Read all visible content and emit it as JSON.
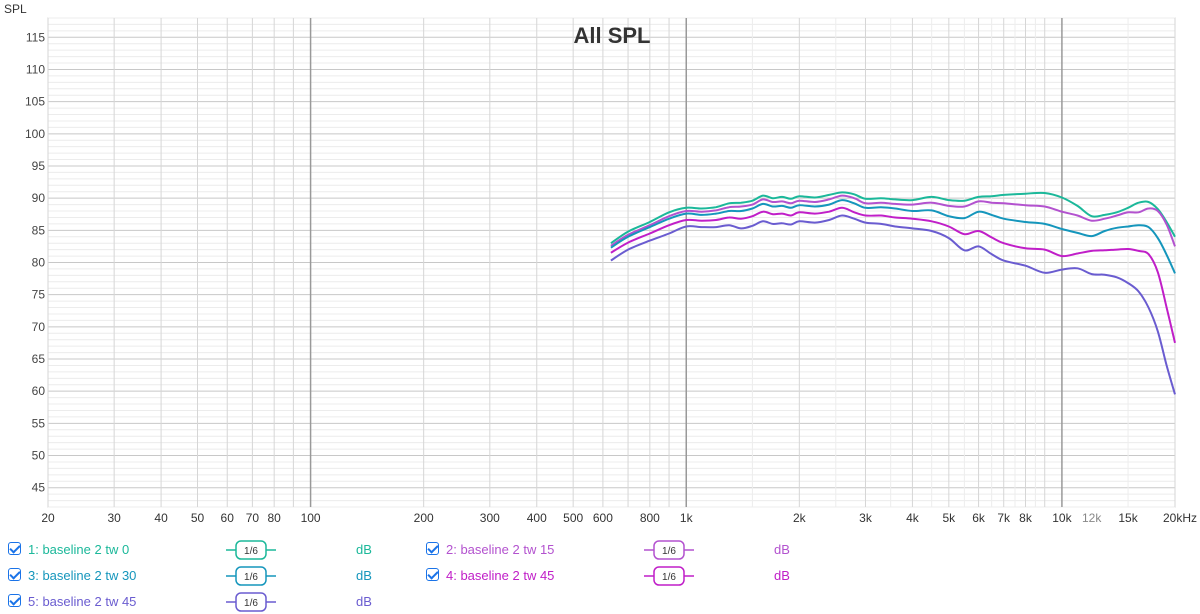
{
  "chart_data": {
    "type": "line",
    "title": "All SPL",
    "ylabel": "SPL",
    "xlabel": "",
    "x_scale": "log",
    "xlim": [
      20,
      20000
    ],
    "ylim": [
      42,
      118
    ],
    "y_ticks": [
      45,
      50,
      55,
      60,
      65,
      70,
      75,
      80,
      85,
      90,
      95,
      100,
      105,
      110,
      115
    ],
    "x_ticks": [
      {
        "v": 20,
        "label": "20"
      },
      {
        "v": 30,
        "label": "30"
      },
      {
        "v": 40,
        "label": "40"
      },
      {
        "v": 50,
        "label": "50"
      },
      {
        "v": 60,
        "label": "60"
      },
      {
        "v": 70,
        "label": "70"
      },
      {
        "v": 80,
        "label": "80"
      },
      {
        "v": 100,
        "label": "100"
      },
      {
        "v": 200,
        "label": "200"
      },
      {
        "v": 300,
        "label": "300"
      },
      {
        "v": 400,
        "label": "400"
      },
      {
        "v": 500,
        "label": "500"
      },
      {
        "v": 600,
        "label": "600"
      },
      {
        "v": 800,
        "label": "800"
      },
      {
        "v": 1000,
        "label": "1k"
      },
      {
        "v": 2000,
        "label": "2k"
      },
      {
        "v": 3000,
        "label": "3k"
      },
      {
        "v": 4000,
        "label": "4k"
      },
      {
        "v": 5000,
        "label": "5k"
      },
      {
        "v": 6000,
        "label": "6k"
      },
      {
        "v": 7000,
        "label": "7k"
      },
      {
        "v": 8000,
        "label": "8k"
      },
      {
        "v": 10000,
        "label": "10k"
      },
      {
        "v": 12000,
        "label": "12k",
        "muted": true
      },
      {
        "v": 15000,
        "label": "15k"
      },
      {
        "v": 20000,
        "label": "20kHz"
      }
    ],
    "grid": true,
    "x": [
      630,
      700,
      800,
      900,
      1000,
      1100,
      1200,
      1300,
      1400,
      1500,
      1600,
      1700,
      1800,
      1900,
      2000,
      2200,
      2400,
      2600,
      2800,
      3000,
      3300,
      3600,
      4000,
      4500,
      5000,
      5500,
      6000,
      6500,
      7000,
      8000,
      9000,
      10000,
      11000,
      12000,
      13000,
      14000,
      15000,
      16000,
      17000,
      18000,
      19000,
      20000
    ],
    "series": [
      {
        "name": "1: baseline 2 tw 0",
        "color": "#1bb89a",
        "values": [
          83,
          84.8,
          86.3,
          87.8,
          88.5,
          88.4,
          88.6,
          89.2,
          89.3,
          89.6,
          90.4,
          90.0,
          90.2,
          89.9,
          90.3,
          90.1,
          90.5,
          90.9,
          90.6,
          89.9,
          90.0,
          89.8,
          89.7,
          90.2,
          89.7,
          89.6,
          90.2,
          90.3,
          90.5,
          90.7,
          90.8,
          90.1,
          88.8,
          87.2,
          87.4,
          87.8,
          88.5,
          89.3,
          89.4,
          88.3,
          86.3,
          84.0
        ]
      },
      {
        "name": "2: baseline 2 tw 15",
        "color": "#b352cf",
        "values": [
          82.6,
          84.3,
          85.8,
          87.2,
          88.0,
          87.9,
          88.1,
          88.6,
          88.7,
          89.0,
          89.8,
          89.4,
          89.5,
          89.2,
          89.6,
          89.4,
          89.8,
          90.4,
          90.0,
          89.2,
          89.3,
          89.1,
          89.0,
          89.3,
          88.8,
          88.7,
          89.5,
          89.3,
          89.2,
          88.9,
          88.7,
          87.9,
          87.3,
          86.5,
          86.8,
          87.3,
          87.8,
          87.8,
          88.4,
          88.0,
          85.9,
          82.5
        ]
      },
      {
        "name": "3: baseline 2 tw 30",
        "color": "#1596bc",
        "values": [
          82.3,
          84.0,
          85.5,
          86.8,
          87.6,
          87.4,
          87.6,
          88.0,
          88.0,
          88.4,
          89.1,
          88.7,
          88.8,
          88.5,
          88.9,
          88.7,
          89.0,
          89.7,
          89.2,
          88.5,
          88.6,
          88.4,
          88.0,
          88.1,
          87.2,
          86.9,
          87.9,
          87.4,
          86.8,
          86.3,
          86.0,
          85.2,
          84.6,
          84.1,
          84.9,
          85.4,
          85.6,
          85.8,
          85.5,
          83.8,
          81.2,
          78.3
        ]
      },
      {
        "name": "4: baseline 2 tw 45",
        "color": "#c01ec8",
        "values": [
          81.5,
          83.1,
          84.5,
          85.8,
          86.6,
          86.5,
          86.6,
          87.0,
          86.8,
          87.2,
          87.9,
          87.5,
          87.6,
          87.3,
          87.8,
          87.6,
          87.9,
          88.5,
          87.8,
          87.3,
          87.3,
          87.0,
          86.8,
          86.4,
          85.6,
          84.4,
          84.9,
          83.9,
          83.0,
          82.2,
          82.0,
          81.0,
          81.4,
          81.8,
          81.9,
          82.0,
          82.1,
          81.8,
          81.3,
          78.5,
          73.0,
          67.5
        ]
      },
      {
        "name": "5: baseline 2 tw 45",
        "color": "#6a5cd0",
        "values": [
          80.3,
          82.0,
          83.4,
          84.5,
          85.6,
          85.5,
          85.5,
          85.8,
          85.3,
          85.7,
          86.4,
          86.0,
          86.1,
          85.9,
          86.4,
          86.2,
          86.6,
          87.3,
          86.8,
          86.2,
          86.0,
          85.6,
          85.3,
          84.9,
          83.8,
          81.9,
          82.5,
          81.3,
          80.3,
          79.5,
          78.4,
          78.9,
          79.1,
          78.2,
          78.1,
          77.7,
          76.8,
          75.5,
          73.0,
          69.3,
          64.0,
          59.5
        ]
      }
    ]
  },
  "legend": {
    "items": [
      {
        "label": "1: baseline 2 tw 0",
        "smoothing": "1/6",
        "unit": "dB",
        "color": "#1bb89a"
      },
      {
        "label": "2: baseline 2 tw 15",
        "smoothing": "1/6",
        "unit": "dB",
        "color": "#b352cf"
      },
      {
        "label": "3: baseline 2 tw 30",
        "smoothing": "1/6",
        "unit": "dB",
        "color": "#1596bc"
      },
      {
        "label": "4: baseline 2 tw 45",
        "smoothing": "1/6",
        "unit": "dB",
        "color": "#c01ec8"
      },
      {
        "label": "5: baseline 2 tw 45",
        "smoothing": "1/6",
        "unit": "dB",
        "color": "#6a5cd0"
      }
    ]
  }
}
